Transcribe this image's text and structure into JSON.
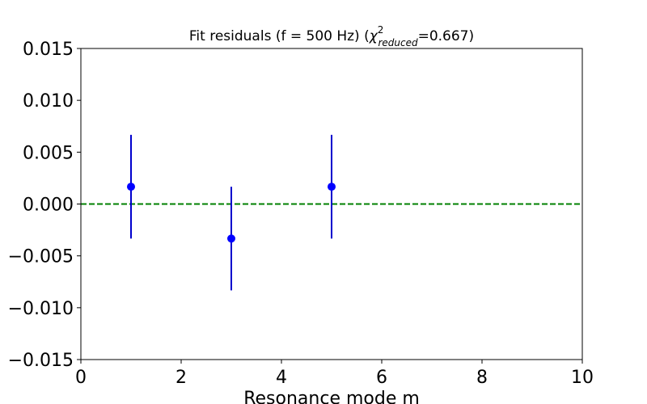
{
  "chart_data": {
    "type": "scatter",
    "title": {
      "prefix": "Fit residuals (f = 500 Hz) (",
      "chi": "χ",
      "superscript": "2",
      "subscript": "reduced",
      "suffix": "=0.667)"
    },
    "xlabel": "Resonance mode m",
    "ylabel": "",
    "xlim": [
      0,
      10
    ],
    "ylim": [
      -0.015,
      0.015
    ],
    "x_ticks": [
      0,
      2,
      4,
      6,
      8,
      10
    ],
    "x_tick_labels": [
      "0",
      "2",
      "4",
      "6",
      "8",
      "10"
    ],
    "y_ticks": [
      -0.015,
      -0.01,
      -0.005,
      0.0,
      0.005,
      0.01,
      0.015
    ],
    "y_tick_labels": [
      "−0.015",
      "−0.010",
      "−0.005",
      "0.000",
      "0.005",
      "0.010",
      "0.015"
    ],
    "grid": false,
    "reference_line": {
      "y": 0.0,
      "style": "dashed",
      "color": "#008000"
    },
    "series": [
      {
        "x": [
          1,
          3,
          5
        ],
        "y": [
          0.00167,
          -0.00333,
          0.00167
        ],
        "yerr": [
          0.005,
          0.005,
          0.005
        ],
        "color": "#0000ff",
        "errorbar_color": "#0000cd"
      }
    ]
  }
}
